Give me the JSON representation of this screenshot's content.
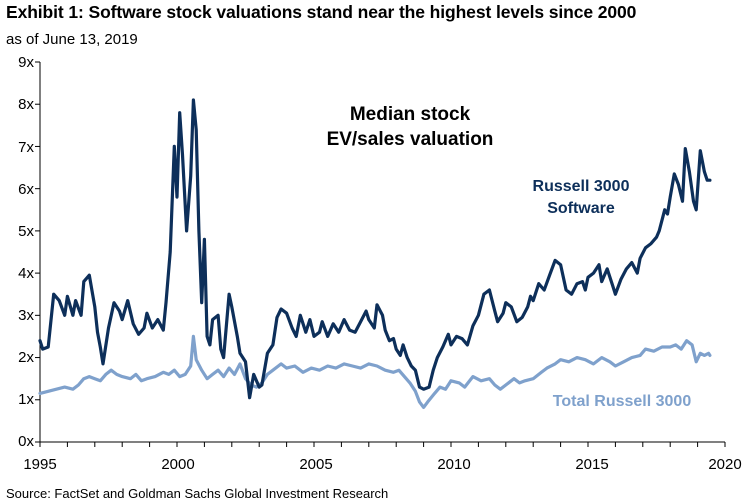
{
  "header": {
    "title": "Exhibit 1: Software stock valuations stand near the highest levels since 2000",
    "subtitle": "as of June 13, 2019"
  },
  "footer": {
    "source": "Source: FactSet and Goldman Sachs Global Investment Research"
  },
  "chart_data": {
    "type": "line",
    "title": "Median stock EV/sales valuation",
    "title_lines": [
      "Median stock",
      "EV/sales valuation"
    ],
    "xlabel": "",
    "ylabel": "",
    "xlim": [
      1995,
      2020
    ],
    "ylim": [
      0,
      9
    ],
    "grid": false,
    "legend": "direct labels on series",
    "y_ticks": [
      "0x",
      "1x",
      "2x",
      "3x",
      "4x",
      "5x",
      "6x",
      "7x",
      "8x",
      "9x"
    ],
    "x_ticks": [
      "1995",
      "2000",
      "2005",
      "2010",
      "2015",
      "2020"
    ],
    "series": [
      {
        "name": "Russell 3000 Software",
        "label_lines": [
          "Russell 3000",
          "Software"
        ],
        "color": "#0d2f5a",
        "points": [
          [
            1995.0,
            2.4
          ],
          [
            1995.1,
            2.2
          ],
          [
            1995.3,
            2.25
          ],
          [
            1995.5,
            3.5
          ],
          [
            1995.7,
            3.35
          ],
          [
            1995.9,
            3.0
          ],
          [
            1996.0,
            3.45
          ],
          [
            1996.2,
            3.0
          ],
          [
            1996.3,
            3.35
          ],
          [
            1996.5,
            3.0
          ],
          [
            1996.6,
            3.8
          ],
          [
            1996.8,
            3.95
          ],
          [
            1997.0,
            3.2
          ],
          [
            1997.1,
            2.6
          ],
          [
            1997.2,
            2.25
          ],
          [
            1997.3,
            1.85
          ],
          [
            1997.5,
            2.7
          ],
          [
            1997.7,
            3.3
          ],
          [
            1997.9,
            3.1
          ],
          [
            1998.0,
            2.9
          ],
          [
            1998.2,
            3.35
          ],
          [
            1998.4,
            2.8
          ],
          [
            1998.6,
            2.55
          ],
          [
            1998.8,
            2.7
          ],
          [
            1998.9,
            3.05
          ],
          [
            1999.1,
            2.7
          ],
          [
            1999.3,
            2.9
          ],
          [
            1999.5,
            2.65
          ],
          [
            1999.6,
            3.3
          ],
          [
            1999.75,
            4.5
          ],
          [
            1999.9,
            7.0
          ],
          [
            2000.0,
            5.8
          ],
          [
            2000.1,
            7.8
          ],
          [
            2000.2,
            6.8
          ],
          [
            2000.35,
            5.0
          ],
          [
            2000.5,
            6.3
          ],
          [
            2000.6,
            8.1
          ],
          [
            2000.7,
            7.4
          ],
          [
            2000.8,
            5.0
          ],
          [
            2000.9,
            3.3
          ],
          [
            2001.0,
            4.8
          ],
          [
            2001.1,
            2.5
          ],
          [
            2001.2,
            2.3
          ],
          [
            2001.3,
            2.9
          ],
          [
            2001.5,
            3.0
          ],
          [
            2001.6,
            2.2
          ],
          [
            2001.7,
            2.0
          ],
          [
            2001.9,
            3.5
          ],
          [
            2002.0,
            3.2
          ],
          [
            2002.2,
            2.5
          ],
          [
            2002.3,
            2.1
          ],
          [
            2002.5,
            1.9
          ],
          [
            2002.65,
            1.05
          ],
          [
            2002.8,
            1.6
          ],
          [
            2003.0,
            1.3
          ],
          [
            2003.1,
            1.35
          ],
          [
            2003.3,
            2.1
          ],
          [
            2003.5,
            2.3
          ],
          [
            2003.65,
            2.95
          ],
          [
            2003.8,
            3.15
          ],
          [
            2004.0,
            3.05
          ],
          [
            2004.2,
            2.7
          ],
          [
            2004.35,
            2.5
          ],
          [
            2004.5,
            3.0
          ],
          [
            2004.7,
            2.6
          ],
          [
            2004.85,
            2.9
          ],
          [
            2005.0,
            2.5
          ],
          [
            2005.2,
            2.6
          ],
          [
            2005.3,
            2.85
          ],
          [
            2005.5,
            2.5
          ],
          [
            2005.7,
            2.8
          ],
          [
            2005.9,
            2.6
          ],
          [
            2006.1,
            2.9
          ],
          [
            2006.3,
            2.65
          ],
          [
            2006.5,
            2.6
          ],
          [
            2006.7,
            2.85
          ],
          [
            2006.9,
            3.1
          ],
          [
            2007.0,
            2.9
          ],
          [
            2007.2,
            2.7
          ],
          [
            2007.3,
            3.25
          ],
          [
            2007.5,
            3.0
          ],
          [
            2007.6,
            2.65
          ],
          [
            2007.75,
            2.4
          ],
          [
            2007.9,
            2.45
          ],
          [
            2008.0,
            2.2
          ],
          [
            2008.15,
            2.05
          ],
          [
            2008.25,
            2.3
          ],
          [
            2008.4,
            2.0
          ],
          [
            2008.55,
            1.8
          ],
          [
            2008.7,
            1.7
          ],
          [
            2008.85,
            1.3
          ],
          [
            2009.0,
            1.25
          ],
          [
            2009.2,
            1.3
          ],
          [
            2009.35,
            1.7
          ],
          [
            2009.5,
            2.0
          ],
          [
            2009.7,
            2.25
          ],
          [
            2009.9,
            2.55
          ],
          [
            2010.0,
            2.3
          ],
          [
            2010.2,
            2.5
          ],
          [
            2010.4,
            2.45
          ],
          [
            2010.6,
            2.3
          ],
          [
            2010.8,
            2.75
          ],
          [
            2011.0,
            3.0
          ],
          [
            2011.2,
            3.5
          ],
          [
            2011.4,
            3.6
          ],
          [
            2011.6,
            3.1
          ],
          [
            2011.7,
            2.85
          ],
          [
            2011.9,
            3.05
          ],
          [
            2012.0,
            3.3
          ],
          [
            2012.2,
            3.2
          ],
          [
            2012.4,
            2.85
          ],
          [
            2012.6,
            2.95
          ],
          [
            2012.8,
            3.2
          ],
          [
            2012.9,
            3.45
          ],
          [
            2013.0,
            3.35
          ],
          [
            2013.2,
            3.75
          ],
          [
            2013.4,
            3.6
          ],
          [
            2013.6,
            3.95
          ],
          [
            2013.8,
            4.3
          ],
          [
            2014.0,
            4.2
          ],
          [
            2014.2,
            3.6
          ],
          [
            2014.4,
            3.5
          ],
          [
            2014.6,
            3.75
          ],
          [
            2014.8,
            3.8
          ],
          [
            2014.9,
            3.6
          ],
          [
            2015.0,
            3.9
          ],
          [
            2015.2,
            4.0
          ],
          [
            2015.4,
            4.2
          ],
          [
            2015.5,
            3.8
          ],
          [
            2015.7,
            4.1
          ],
          [
            2015.9,
            3.7
          ],
          [
            2016.0,
            3.5
          ],
          [
            2016.2,
            3.85
          ],
          [
            2016.4,
            4.1
          ],
          [
            2016.6,
            4.25
          ],
          [
            2016.8,
            4.0
          ],
          [
            2016.9,
            4.35
          ],
          [
            2017.1,
            4.6
          ],
          [
            2017.3,
            4.7
          ],
          [
            2017.5,
            4.85
          ],
          [
            2017.6,
            5.0
          ],
          [
            2017.8,
            5.5
          ],
          [
            2017.9,
            5.4
          ],
          [
            2018.0,
            5.8
          ],
          [
            2018.15,
            6.35
          ],
          [
            2018.3,
            6.1
          ],
          [
            2018.45,
            5.7
          ],
          [
            2018.55,
            6.95
          ],
          [
            2018.7,
            6.4
          ],
          [
            2018.85,
            5.7
          ],
          [
            2018.95,
            5.5
          ],
          [
            2019.1,
            6.9
          ],
          [
            2019.25,
            6.4
          ],
          [
            2019.35,
            6.2
          ],
          [
            2019.45,
            6.2
          ]
        ]
      },
      {
        "name": "Total Russell 3000",
        "label_lines": [
          "Total Russell 3000"
        ],
        "color": "#7fa1cc",
        "points": [
          [
            1995.0,
            1.15
          ],
          [
            1995.3,
            1.2
          ],
          [
            1995.6,
            1.25
          ],
          [
            1995.9,
            1.3
          ],
          [
            1996.2,
            1.25
          ],
          [
            1996.4,
            1.35
          ],
          [
            1996.6,
            1.5
          ],
          [
            1996.8,
            1.55
          ],
          [
            1997.0,
            1.5
          ],
          [
            1997.2,
            1.45
          ],
          [
            1997.4,
            1.6
          ],
          [
            1997.6,
            1.7
          ],
          [
            1997.8,
            1.6
          ],
          [
            1998.0,
            1.55
          ],
          [
            1998.3,
            1.5
          ],
          [
            1998.5,
            1.6
          ],
          [
            1998.7,
            1.45
          ],
          [
            1998.9,
            1.5
          ],
          [
            1999.2,
            1.55
          ],
          [
            1999.5,
            1.65
          ],
          [
            1999.7,
            1.6
          ],
          [
            1999.9,
            1.7
          ],
          [
            2000.1,
            1.55
          ],
          [
            2000.3,
            1.6
          ],
          [
            2000.5,
            1.8
          ],
          [
            2000.6,
            2.5
          ],
          [
            2000.7,
            1.95
          ],
          [
            2000.9,
            1.7
          ],
          [
            2001.1,
            1.5
          ],
          [
            2001.3,
            1.6
          ],
          [
            2001.5,
            1.7
          ],
          [
            2001.7,
            1.55
          ],
          [
            2001.9,
            1.75
          ],
          [
            2002.1,
            1.6
          ],
          [
            2002.3,
            1.85
          ],
          [
            2002.5,
            1.5
          ],
          [
            2002.7,
            1.35
          ],
          [
            2002.9,
            1.3
          ],
          [
            2003.1,
            1.4
          ],
          [
            2003.3,
            1.6
          ],
          [
            2003.5,
            1.7
          ],
          [
            2003.8,
            1.85
          ],
          [
            2004.0,
            1.75
          ],
          [
            2004.3,
            1.8
          ],
          [
            2004.6,
            1.65
          ],
          [
            2004.9,
            1.75
          ],
          [
            2005.2,
            1.7
          ],
          [
            2005.5,
            1.8
          ],
          [
            2005.8,
            1.75
          ],
          [
            2006.1,
            1.85
          ],
          [
            2006.4,
            1.8
          ],
          [
            2006.7,
            1.75
          ],
          [
            2007.0,
            1.85
          ],
          [
            2007.3,
            1.8
          ],
          [
            2007.6,
            1.7
          ],
          [
            2007.9,
            1.65
          ],
          [
            2008.1,
            1.7
          ],
          [
            2008.3,
            1.55
          ],
          [
            2008.5,
            1.4
          ],
          [
            2008.7,
            1.2
          ],
          [
            2008.85,
            0.95
          ],
          [
            2009.0,
            0.82
          ],
          [
            2009.15,
            0.95
          ],
          [
            2009.4,
            1.15
          ],
          [
            2009.6,
            1.3
          ],
          [
            2009.8,
            1.25
          ],
          [
            2010.0,
            1.45
          ],
          [
            2010.3,
            1.4
          ],
          [
            2010.5,
            1.3
          ],
          [
            2010.8,
            1.55
          ],
          [
            2011.1,
            1.45
          ],
          [
            2011.4,
            1.5
          ],
          [
            2011.6,
            1.35
          ],
          [
            2011.8,
            1.25
          ],
          [
            2012.0,
            1.35
          ],
          [
            2012.3,
            1.5
          ],
          [
            2012.5,
            1.4
          ],
          [
            2012.7,
            1.45
          ],
          [
            2013.0,
            1.5
          ],
          [
            2013.3,
            1.65
          ],
          [
            2013.5,
            1.75
          ],
          [
            2013.8,
            1.85
          ],
          [
            2014.0,
            1.95
          ],
          [
            2014.3,
            1.9
          ],
          [
            2014.6,
            2.0
          ],
          [
            2014.9,
            1.95
          ],
          [
            2015.2,
            1.85
          ],
          [
            2015.5,
            2.0
          ],
          [
            2015.8,
            1.9
          ],
          [
            2016.0,
            1.8
          ],
          [
            2016.3,
            1.9
          ],
          [
            2016.6,
            2.0
          ],
          [
            2016.9,
            2.05
          ],
          [
            2017.1,
            2.2
          ],
          [
            2017.4,
            2.15
          ],
          [
            2017.7,
            2.25
          ],
          [
            2018.0,
            2.25
          ],
          [
            2018.2,
            2.3
          ],
          [
            2018.4,
            2.2
          ],
          [
            2018.6,
            2.4
          ],
          [
            2018.8,
            2.3
          ],
          [
            2018.95,
            1.9
          ],
          [
            2019.1,
            2.1
          ],
          [
            2019.25,
            2.05
          ],
          [
            2019.4,
            2.1
          ],
          [
            2019.45,
            2.05
          ]
        ]
      }
    ]
  }
}
